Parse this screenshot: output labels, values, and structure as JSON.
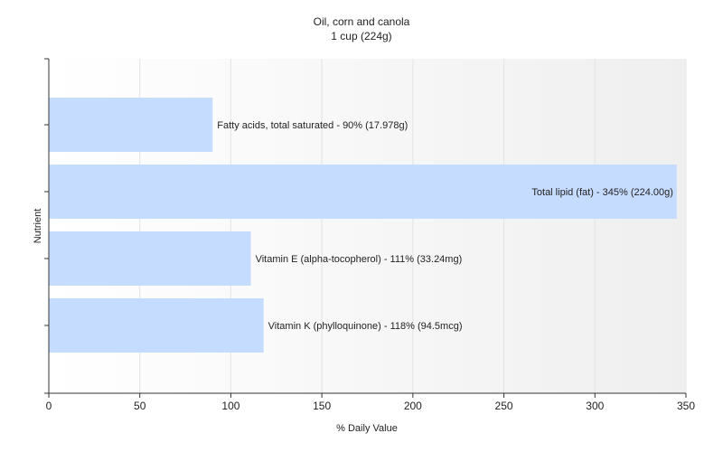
{
  "chart_data": {
    "type": "bar",
    "orientation": "horizontal",
    "title": "Oil, corn and canola",
    "subtitle": "1 cup (224g)",
    "xlabel": "% Daily Value",
    "ylabel": "Nutrient",
    "xlim": [
      0,
      350
    ],
    "xticks": [
      0,
      50,
      100,
      150,
      200,
      250,
      300,
      350
    ],
    "grid": true,
    "legend": "none",
    "bar_color": "#c6dcff",
    "categories": [
      "Fatty acids, total saturated",
      "Total lipid (fat)",
      "Vitamin E (alpha-tocopherol)",
      "Vitamin K (phylloquinone)"
    ],
    "values": [
      90,
      345,
      111,
      118
    ],
    "data_labels": [
      "Fatty acids, total saturated - 90% (17.978g)",
      "Total lipid (fat) - 345% (224.00g)",
      "Vitamin E (alpha-tocopherol) - 111% (33.24mg)",
      "Vitamin K (phylloquinone) - 118% (94.5mcg)"
    ]
  }
}
